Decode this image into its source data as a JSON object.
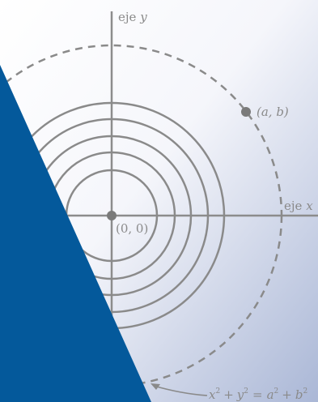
{
  "figure": {
    "axis_labels": {
      "y_prefix": "eje",
      "y_var": "y",
      "x_prefix": "eje",
      "x_var": "x"
    },
    "origin_label": "(0, 0)",
    "point_label": "(a, b)",
    "equation": {
      "x": "x",
      "x_exp": "2",
      "plus": "+",
      "y": "y",
      "y_exp": "2",
      "eq": "=",
      "a": "a",
      "a_exp": "2",
      "plus2": "+",
      "b": "b",
      "b_exp": "2"
    },
    "colors": {
      "background_light": "#ffffff",
      "background_dark": "#aab7d6",
      "axis_color": "#8c8c8c",
      "circle_color": "#8a8a8a",
      "point_color": "#7a7a7a",
      "label_color": "#8a8a8a",
      "triangle_color": "#04599b"
    },
    "solid_circle_count": 5,
    "dashed_circle_count": 1
  }
}
